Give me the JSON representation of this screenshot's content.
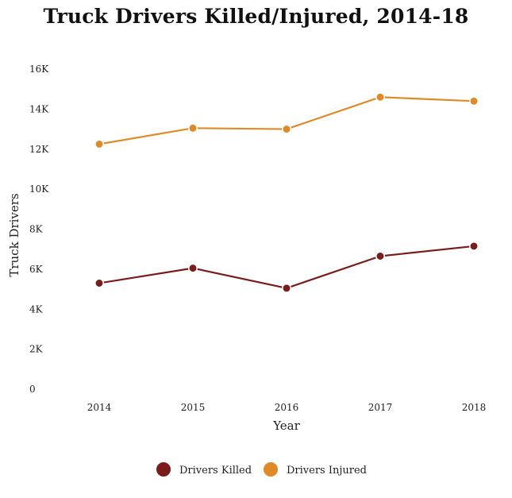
{
  "chart_data": {
    "type": "line",
    "title": "Truck Drivers Killed/Injured, 2014-18",
    "xlabel": "Year",
    "ylabel": "Truck Drivers",
    "categories": [
      "2014",
      "2015",
      "2016",
      "2017",
      "2018"
    ],
    "y_ticks": [
      "0",
      "2K",
      "4K",
      "6K",
      "8K",
      "10K",
      "12K",
      "14K",
      "16K"
    ],
    "ylim": [
      0,
      16000
    ],
    "grid": false,
    "legend_position": "bottom-center",
    "series": [
      {
        "name": "Drivers Killed",
        "color": "#7a1c1c",
        "values": [
          5300,
          6050,
          5050,
          6650,
          7150
        ]
      },
      {
        "name": "Drivers Injured",
        "color": "#e08a27",
        "values": [
          12250,
          13050,
          13000,
          14600,
          14400
        ]
      }
    ]
  }
}
